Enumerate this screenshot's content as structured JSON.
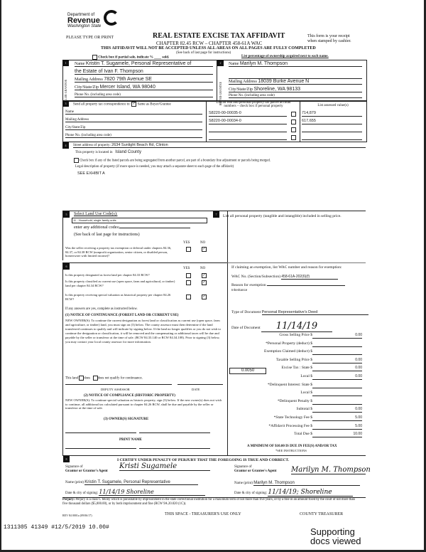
{
  "header": {
    "dept": "Department of",
    "revenue": "Revenue",
    "state": "Washington State",
    "please": "PLEASE TYPE OR PRINT",
    "title": "REAL ESTATE EXCISE TAX AFFIDAVIT",
    "chapter": "CHAPTER 82.45 RCW – CHAPTER 458-61A WAC",
    "warning": "THIS AFFIDAVIT WILL NOT BE ACCEPTED UNLESS ALL AREAS ON ALL PAGES ARE FULLY COMPLETED",
    "receipt1": "This form is your receipt",
    "receipt2": "when stamped by cashier.",
    "see_back": "(See back of last page for instructions)",
    "partial": "Check box if partial sale, indicate %",
    "sold": "sold.",
    "pct": "List percentage of ownership acquired next to each name."
  },
  "seller": {
    "side": "SELLER GRANTOR",
    "name_label": "Name",
    "name": "Kristin T. Sugamele, Personal Representative of",
    "name2": "the Estate of Ivan F. Thompson",
    "addr_label": "Mailing Address",
    "addr": "7820 79th Avenue SE",
    "city_label": "City/State/Zip",
    "city": "Mercer Island, WA 98040",
    "phone_label": "Phone No. (including area code)"
  },
  "buyer": {
    "side": "BUYER GRANTEE",
    "name_label": "Name",
    "name": "Marilyn M. Thompson",
    "addr_label": "Mailing Address",
    "addr": "18039 Burke Avenue N",
    "city_label": "City/State/Zip",
    "city": "Shoreline, WA 98133",
    "phone_label": "Phone No. (including area code)"
  },
  "s3": {
    "send": "Send all property tax correspondence to:",
    "same": "Same as Buyer/Grantee",
    "name": "Name",
    "addr": "Mailing Address",
    "city": "City/State/Zip",
    "phone": "Phone No. (including area code)",
    "parcel_hdr1": "List all real and personal property tax parcel account",
    "parcel_hdr2": "numbers – check box if personal property",
    "value_hdr": "List assessed value(s)",
    "parcels": [
      "S8220-00-00035-0",
      "S8220-00-00034-0",
      "",
      ""
    ],
    "values": [
      "714,879",
      "617,655",
      "",
      ""
    ]
  },
  "s4": {
    "street_label": "Street address of property:",
    "street": "2634 Sunlight Beach Rd, Clinton",
    "county_label": "This property is located in",
    "county": "Island County",
    "segregated": "Check box if any of the listed parcels are being segregated from another parcel, are part of a boundary line adjustment or parcels being merged.",
    "legal": "Legal description of property (if more space is needed, you may attach a separate sheet to each page of the affidavit)",
    "legal_value": "SEE EXHIBIT A"
  },
  "s5": {
    "select": "Select Land Use Code(s):",
    "code": "11 - Household, single family units",
    "additional": "enter any additional codes:",
    "see_back": "(See back of last page for instructions)",
    "yes": "YES",
    "no": "NO",
    "q1": "Was the seller receiving a property tax exemption or deferral under chapters 84.36, 84.37, or 84.38 RCW (nonprofit organization, senior citizen, or disabled person, homeowner with limited income)?"
  },
  "s6": {
    "yes": "YES",
    "no": "NO",
    "q1": "Is this property designated as forest land per chapter 84.33 RCW?",
    "q2": "Is this property classified as current use (open space, farm and agricultural, or timber) land per chapter 84.34 RCW?",
    "q3": "Is this property receiving special valuation as historical property per chapter 84.26 RCW?",
    "ifyes": "If any answers are yes, complete as instructed below.",
    "n1_title": "(1) NOTICE OF CONTINUANCE (FOREST LAND OR CURRENT USE)",
    "n1_text": "NEW OWNER(S): To continue the current designation as forest land or classification as current use (open space, farm and agriculture, or timber) land, you must sign on (3) below. The county assessor must then determine if the land transferred continues to qualify and will indicate by signing below. If the land no longer qualifies or you do not wish to continue the designation or classification, it will be removed and the compensating or additional taxes will be due and payable by the seller or transferor at the time of sale. (RCW 84.33.140 or RCW 84.34.108). Prior to signing (3) below, you may contact your local county assessor for more information.",
    "this_land": "This land",
    "does": "does",
    "does_not": "does not",
    "qualify": "qualify for continuance.",
    "deputy": "DEPUTY ASSESSOR",
    "date": "DATE",
    "n2_title": "(2) NOTICE OF COMPLIANCE (HISTORIC PROPERTY)",
    "n2_text": "NEW OWNER(S): To continue special valuation as historic property, sign (3) below. If the new owner(s) does not wish to continue, all additional tax calculated pursuant to chapter 84.26 RCW, shall be due and payable by the seller or transferor at the time of sale.",
    "n3_title": "(3) OWNER(S) SIGNATURE",
    "print_name": "PRINT NAME"
  },
  "s7": {
    "personal": "List all personal property (tangible and intangible) included in selling price.",
    "exempt": "If claiming an exemption, list WAC number and reason for exemption:",
    "wac_label": "WAC No. (Section/Subsection)",
    "wac": "458-61A-202(6)(f)",
    "reason_label": "Reason for exemption",
    "reason": "Inheritance",
    "type_label": "Type of Document",
    "type": "Personal Representative's Deed",
    "date_label": "Date of Document",
    "date": "11/14/19",
    "rate": "0.0050",
    "fees": [
      {
        "label": "Gross Selling Price $",
        "value": "0.00"
      },
      {
        "label": "*Personal Property (deduct) $",
        "value": ""
      },
      {
        "label": "Exemption Claimed (deduct) $",
        "value": ""
      },
      {
        "label": "Taxable Selling Price $",
        "value": "0.00"
      },
      {
        "label": "Excise Tax : State $",
        "value": "0.00"
      },
      {
        "label": "Local $",
        "value": "0.00"
      },
      {
        "label": "*Delinquent Interest: State $",
        "value": ""
      },
      {
        "label": "Local $",
        "value": ""
      },
      {
        "label": "*Delinquent Penalty $",
        "value": ""
      },
      {
        "label": "Subtotal $",
        "value": "0.00"
      },
      {
        "label": "*State Technology Fee $",
        "value": "5.00"
      },
      {
        "label": "*Affidavit Processing Fee $",
        "value": "5.00"
      },
      {
        "label": "Total Due $",
        "value": "10.00"
      }
    ],
    "minimum": "A MINIMUM OF $10.00 IS DUE IN FEE(S) AND/OR TAX",
    "see_instr": "*SEE INSTRUCTIONS"
  },
  "s8": {
    "certify": "I CERTIFY UNDER PENALTY OF PERJURY THAT THE FOREGOING IS TRUE AND CORRECT.",
    "sig_of": "Signature of",
    "grantor_agent": "Grantor or Grantor's Agent",
    "grantee_agent": "Grantor or Grantee's Agent",
    "name_print": "Name (print)",
    "grantor_name": "Kristin T. Sugamele, Personal Representative",
    "grantee_name": "Marilyn M. Thompson",
    "date_city": "Date & city of signing:",
    "grantor_date": "11/14/19  Shoreline",
    "grantee_date": "11/14/19; Shoreline",
    "grantor_sig": "Kristi Sugamele",
    "grantee_sig": "Marilyn M. Thompson"
  },
  "footer": {
    "perjury_b": "Perjury:",
    "perjury": "Perjury is a class C felony which is punishable by imprisonment in the state correctional institution for a maximum term of not more than five years, or by a fine in an amount fixed by the court of not more than five thousand dollars ($5,000.00), or by both imprisonment and fine (RCW 9A.20.020 (1C)).",
    "rev": "REV 84 0001a (09/06/17)",
    "treasurer_space": "THIS SPACE - TREASURER'S USE ONLY",
    "county_treasurer": "COUNTY TREASURER",
    "stamp": "1311305 41349 #12/5/2019 10.00#",
    "supporting": "Supporting",
    "docs": "docs viewed"
  },
  "section_numbers": [
    "1",
    "2",
    "3",
    "4",
    "5",
    "6",
    "7",
    "8"
  ]
}
